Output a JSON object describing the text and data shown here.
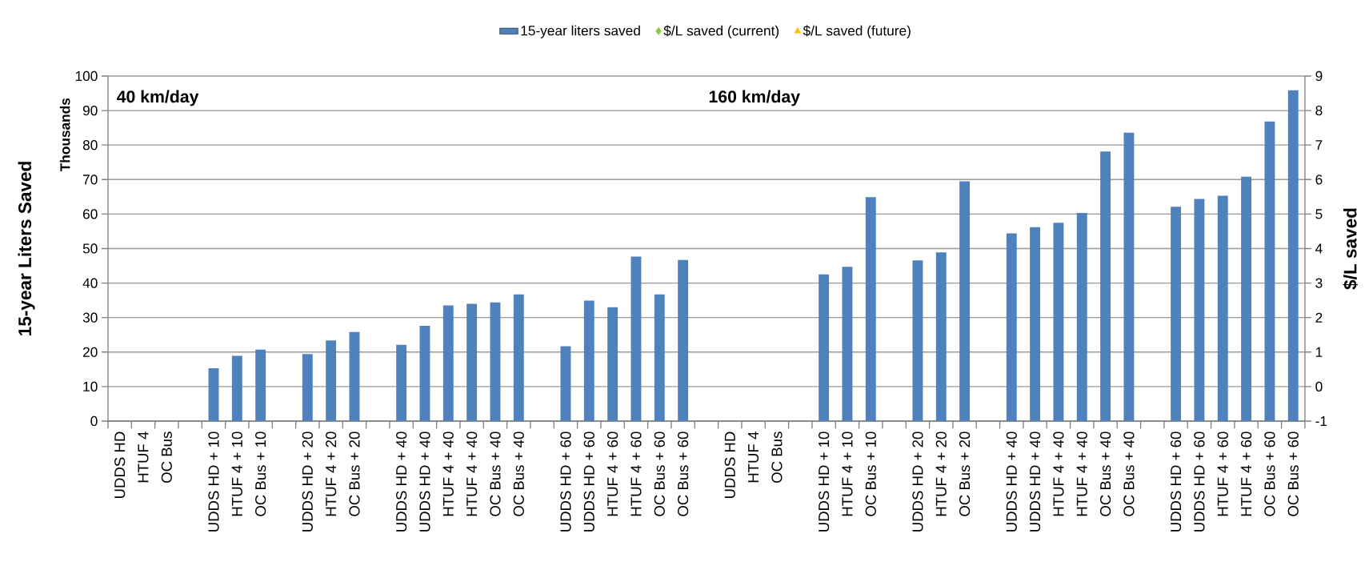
{
  "chart_data": {
    "type": "bar",
    "ylabel": "15-year Liters Saved",
    "y2label": "$/L saved",
    "annotations": [
      "40 km/day",
      "160 km/day",
      "Thousands"
    ],
    "categories": [
      "UDDS HD",
      "HTUF 4",
      "OC Bus",
      null,
      "UDDS HD + 10",
      "HTUF 4 + 10",
      "OC Bus + 10",
      null,
      "UDDS HD + 20",
      "HTUF 4 + 20",
      "OC Bus + 20",
      null,
      "UDDS HD + 40",
      "UDDS HD + 40",
      "HTUF 4 + 40",
      "HTUF 4 + 40",
      "OC Bus + 40",
      "OC Bus + 40",
      null,
      "UDDS HD + 60",
      "UDDS HD + 60",
      "HTUF 4 + 60",
      "HTUF 4 + 60",
      "OC Bus + 60",
      "OC Bus + 60",
      null,
      "UDDS HD",
      "HTUF 4",
      "OC Bus",
      null,
      "UDDS HD + 10",
      "HTUF 4 + 10",
      "OC Bus + 10",
      null,
      "UDDS HD + 20",
      "HTUF 4 + 20",
      "OC Bus + 20",
      null,
      "UDDS HD + 40",
      "UDDS HD + 40",
      "HTUF 4 + 40",
      "HTUF 4 + 40",
      "OC Bus + 40",
      "OC Bus + 40",
      null,
      "UDDS HD + 60",
      "UDDS HD + 60",
      "HTUF 4 + 60",
      "HTUF 4 + 60",
      "OC Bus + 60",
      "OC Bus + 60"
    ],
    "series": [
      {
        "name": "15-year liters saved",
        "color": "#4f81bd",
        "values": [
          null,
          null,
          null,
          null,
          15.3,
          18.9,
          20.7,
          null,
          19.4,
          23.4,
          25.8,
          null,
          22.1,
          27.6,
          33.5,
          34.0,
          34.4,
          36.7,
          null,
          21.7,
          34.9,
          33.0,
          47.7,
          36.7,
          46.7,
          null,
          null,
          null,
          null,
          null,
          42.5,
          44.7,
          64.9,
          null,
          46.6,
          48.9,
          69.5,
          null,
          54.4,
          56.2,
          57.5,
          60.3,
          78.1,
          83.6,
          null,
          62.1,
          64.4,
          65.3,
          70.8,
          86.8,
          95.9
        ]
      },
      {
        "name": "$/L saved (current)",
        "type": "scatter",
        "marker": "diamond",
        "color": "#8dc63f",
        "values": [
          null,
          null,
          null,
          null,
          null,
          null,
          null,
          null,
          null,
          null,
          null,
          null,
          null,
          null,
          null,
          null,
          null,
          null,
          null,
          null,
          null,
          null,
          null,
          null,
          null,
          null,
          null,
          null,
          null,
          null,
          null,
          null,
          null,
          null,
          null,
          null,
          null,
          null,
          null,
          null,
          null,
          null,
          null,
          null,
          null,
          null,
          null,
          null,
          null,
          null,
          null
        ]
      },
      {
        "name": "$/L saved (future)",
        "type": "scatter",
        "marker": "triangle",
        "color": "#ffc000",
        "values": [
          null,
          null,
          null,
          null,
          null,
          null,
          null,
          null,
          null,
          null,
          null,
          null,
          null,
          null,
          null,
          null,
          null,
          null,
          null,
          null,
          null,
          null,
          null,
          null,
          null,
          null,
          null,
          null,
          null,
          null,
          null,
          null,
          null,
          null,
          null,
          null,
          null,
          null,
          null,
          null,
          null,
          null,
          null,
          null,
          null,
          null,
          null,
          null,
          null,
          null,
          null
        ]
      }
    ],
    "ylim": [
      0,
      100
    ],
    "yticks": [
      0,
      10,
      20,
      30,
      40,
      50,
      60,
      70,
      80,
      90,
      100
    ],
    "y2lim": [
      -1,
      9
    ],
    "y2ticks": [
      -1,
      0,
      1,
      2,
      3,
      4,
      5,
      6,
      7,
      8,
      9
    ],
    "grid": "y",
    "legend": "top"
  }
}
